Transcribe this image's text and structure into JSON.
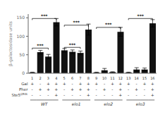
{
  "chart_data": {
    "type": "bar",
    "categories": [
      "1",
      "2",
      "3",
      "4",
      "5",
      "6",
      "7",
      "8",
      "9",
      "10",
      "11",
      "12",
      "13",
      "14",
      "15",
      "16"
    ],
    "values": [
      2,
      57,
      45,
      138,
      62,
      58,
      55,
      118,
      2,
      8,
      3,
      112,
      2,
      10,
      10,
      135
    ],
    "errors": [
      1,
      5,
      6,
      10,
      5,
      5,
      5,
      15,
      1,
      5,
      1,
      12,
      1,
      5,
      4,
      10
    ],
    "color": "#111111",
    "y_label": "β-galactosidase units",
    "ylim": [
      0,
      160
    ],
    "yticks": [
      0,
      50,
      100,
      150
    ],
    "grid": false,
    "rows": [
      {
        "name": "Gal",
        "values": [
          "+",
          "-",
          "+",
          "+",
          "+",
          "-",
          "+",
          "+",
          "+",
          "-",
          "+",
          "+",
          "+",
          "-",
          "+",
          "+"
        ]
      },
      {
        "name": "Pher",
        "values": [
          "-",
          "+",
          "+",
          "+",
          "-",
          "+",
          "+",
          "+",
          "-",
          "+",
          "-",
          "+",
          "-",
          "+",
          "-",
          "+"
        ]
      },
      {
        "name": "Ste5",
        "superscript": "Q50L",
        "values": [
          "-",
          "-",
          "-",
          "+",
          "-",
          "-",
          "-",
          "+",
          "-",
          "-",
          "-",
          "+",
          "-",
          "-",
          "-",
          "+"
        ]
      }
    ],
    "annotations": [
      {
        "label": "***",
        "x1": "1",
        "x2": "4",
        "y": 148
      },
      {
        "label": "***",
        "x1": "5",
        "x2": "8",
        "y": 130
      },
      {
        "label": "***",
        "x1": "9",
        "x2": "12",
        "y": 124
      },
      {
        "label": "***",
        "x1": "13",
        "x2": "16",
        "y": 148
      },
      {
        "label": "***",
        "x1": "1",
        "x2": "3",
        "y": 68
      },
      {
        "label": "***",
        "x1": "5",
        "x2": "7",
        "y": 70
      }
    ],
    "groups": [
      {
        "label": "WT",
        "x1": "1",
        "x2": "4"
      },
      {
        "label": "elo1",
        "x1": "5",
        "x2": "8"
      },
      {
        "label": "elo2",
        "x1": "9",
        "x2": "12"
      },
      {
        "label": "elo3",
        "x1": "13",
        "x2": "16"
      }
    ]
  }
}
